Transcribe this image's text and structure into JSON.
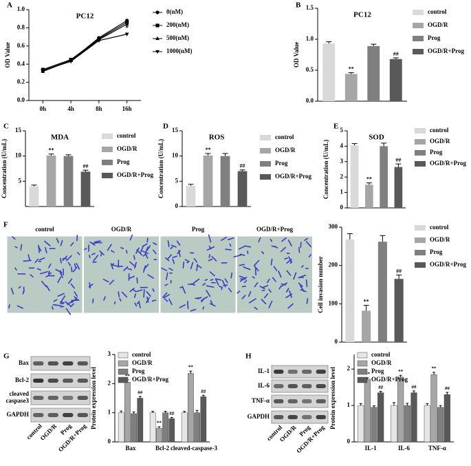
{
  "panels": [
    "A",
    "B",
    "C",
    "D",
    "E",
    "F",
    "G",
    "H"
  ],
  "micrographs": {
    "labels": [
      "control",
      "OGD/R",
      "Prog",
      "OGD/R+Prog"
    ]
  },
  "blots": [
    {
      "rows": [
        "Bax",
        "Bcl-2",
        [
          "cleaved",
          "caspase3"
        ],
        "GAPDH"
      ],
      "lanes": [
        "control",
        "OGD/R",
        "Prog",
        "OGD/R+Prog"
      ]
    },
    {
      "rows": [
        "IL-1",
        "IL-6",
        "TNF-α",
        "GAPDH"
      ],
      "lanes": [
        "control",
        "OGD/R",
        "Prog",
        "OGD/R+Prog"
      ]
    }
  ],
  "chart_data": [
    {
      "type": "line",
      "title": "PC12",
      "ylabel": "OD Value",
      "categories": [
        "0h",
        "4h",
        "8h",
        "16h"
      ],
      "color": "#000000",
      "series": [
        {
          "name": "0(nM)",
          "marker": "circle",
          "values": [
            0.33,
            0.44,
            0.69,
            0.88
          ]
        },
        {
          "name": "200(nM)",
          "marker": "square",
          "values": [
            0.34,
            0.45,
            0.68,
            0.86
          ]
        },
        {
          "name": "500(nM)",
          "marker": "triangle-up",
          "values": [
            0.32,
            0.44,
            0.67,
            0.84
          ]
        },
        {
          "name": "1000(nM)",
          "marker": "triangle-down",
          "values": [
            0.33,
            0.43,
            0.66,
            0.73
          ],
          "annotations": [
            null,
            null,
            null,
            "*"
          ]
        }
      ],
      "ylim": [
        0,
        1
      ],
      "yticks": [
        {
          "value": 0,
          "label": "0.0"
        },
        {
          "value": 0.2,
          "label": "0.2"
        },
        {
          "value": 0.4,
          "label": "0.4"
        },
        {
          "value": 0.6,
          "label": "0.6"
        },
        {
          "value": 0.8,
          "label": "0.8"
        },
        {
          "value": 1,
          "label": "1.0"
        }
      ]
    },
    {
      "type": "bar",
      "title": "PC12",
      "ylabel": "OD Value",
      "categories": [
        "control",
        "OGD/R",
        "Prog",
        "OGD/R+Prog"
      ],
      "values": [
        0.93,
        0.44,
        0.89,
        0.68
      ],
      "errors": [
        0.03,
        0.02,
        0.03,
        0.02
      ],
      "annotations": [
        null,
        "**",
        null,
        "##"
      ],
      "colors": [
        "#d9d9d9",
        "#a6a6a6",
        "#7f7f7f",
        "#595959"
      ],
      "ylim": [
        0,
        1.5
      ],
      "yticks": [
        {
          "value": 0,
          "label": "0.0"
        },
        {
          "value": 0.5,
          "label": "0.5"
        },
        {
          "value": 1,
          "label": "1.0"
        },
        {
          "value": 1.5,
          "label": "1.5"
        }
      ]
    },
    {
      "type": "bar",
      "title": "MDA",
      "ylabel": "Concentration (U/mL)",
      "categories": [
        "control",
        "OGD/R",
        "Prog",
        "OGD/R+Prog"
      ],
      "values": [
        4.0,
        10.1,
        10.0,
        6.9
      ],
      "errors": [
        0.25,
        0.3,
        0.25,
        0.3
      ],
      "annotations": [
        null,
        "**",
        null,
        "##"
      ],
      "colors": [
        "#d9d9d9",
        "#a6a6a6",
        "#7f7f7f",
        "#595959"
      ],
      "ylim": [
        0,
        15
      ],
      "yticks": [
        5,
        10,
        15
      ]
    },
    {
      "type": "bar",
      "title": "ROS",
      "ylabel": "Concentration (U/mL)",
      "categories": [
        "control",
        "OGD/R",
        "Prog",
        "OGD/R+Prog"
      ],
      "values": [
        4.1,
        10.1,
        10.0,
        7.0
      ],
      "errors": [
        0.3,
        0.4,
        0.5,
        0.25
      ],
      "annotations": [
        null,
        "**",
        null,
        "##"
      ],
      "colors": [
        "#d9d9d9",
        "#a6a6a6",
        "#7f7f7f",
        "#595959"
      ],
      "ylim": [
        0,
        15
      ],
      "yticks": [
        0,
        5,
        10,
        15
      ]
    },
    {
      "type": "bar",
      "title": "SOD",
      "ylabel": "Concentration (U/mL)",
      "categories": [
        "control",
        "OGD/R",
        "Prog",
        "OGD/R+Prog"
      ],
      "values": [
        4.05,
        1.5,
        4.0,
        2.65
      ],
      "errors": [
        0.12,
        0.12,
        0.2,
        0.2
      ],
      "annotations": [
        null,
        "**",
        null,
        "##"
      ],
      "colors": [
        "#d9d9d9",
        "#a6a6a6",
        "#7f7f7f",
        "#595959"
      ],
      "ylim": [
        0,
        5
      ],
      "yticks": [
        0,
        1,
        2,
        3,
        4,
        5
      ]
    },
    {
      "type": "bar",
      "ylabel": "Cell invasion number",
      "categories": [
        "control",
        "OGD/R",
        "Prog",
        "OGD/R+Prog"
      ],
      "values": [
        268,
        82,
        262,
        165
      ],
      "errors": [
        15,
        14,
        16,
        10
      ],
      "annotations": [
        null,
        "**",
        null,
        "##"
      ],
      "colors": [
        "#d9d9d9",
        "#a6a6a6",
        "#7f7f7f",
        "#595959"
      ],
      "ylim": [
        0,
        300
      ],
      "yticks": [
        0,
        100,
        200,
        300
      ]
    },
    {
      "type": "bar",
      "ylabel": "Protein expression level",
      "categories": [
        "Bax",
        "Bcl-2",
        "cleaved-caspase-3"
      ],
      "series": [
        {
          "name": "control",
          "color": "#e6e6e6",
          "values": [
            1,
            1,
            1
          ],
          "errors": [
            0.06,
            0.05,
            0.05
          ]
        },
        {
          "name": "OGD/R",
          "color": "#a6a6a6",
          "values": [
            2.05,
            0.47,
            2.35
          ],
          "errors": [
            0.08,
            0.05,
            0.08
          ],
          "annotations": [
            "**",
            "**",
            "**"
          ]
        },
        {
          "name": "Prog",
          "color": "#7f7f7f",
          "values": [
            0.97,
            1.0,
            1.0
          ],
          "errors": [
            0.06,
            0.05,
            0.08
          ]
        },
        {
          "name": "OGD/R+Prog",
          "color": "#595959",
          "values": [
            1.5,
            0.8,
            1.55
          ],
          "errors": [
            0.06,
            0.04,
            0.05
          ],
          "annotations": [
            "##",
            "##",
            "##"
          ]
        }
      ],
      "ylim": [
        0,
        3
      ],
      "yticks": [
        0,
        1,
        2,
        3
      ]
    },
    {
      "type": "bar",
      "ylabel": "Protein expression level",
      "categories": [
        "IL-1",
        "IL-6",
        "TNF-α"
      ],
      "series": [
        {
          "name": "control",
          "color": "#e6e6e6",
          "values": [
            1,
            1,
            1
          ],
          "errors": [
            0.05,
            0.08,
            0.05
          ]
        },
        {
          "name": "OGD/R",
          "color": "#a6a6a6",
          "values": [
            1.72,
            1.78,
            1.85
          ],
          "errors": [
            0.04,
            0.05,
            0.06
          ],
          "annotations": [
            "**",
            "**",
            "**"
          ]
        },
        {
          "name": "Prog",
          "color": "#7f7f7f",
          "values": [
            0.95,
            1.0,
            0.95
          ],
          "errors": [
            0.04,
            0.06,
            0.05
          ]
        },
        {
          "name": "OGD/R+Prog",
          "color": "#595959",
          "values": [
            1.35,
            1.35,
            1.3
          ],
          "errors": [
            0.04,
            0.05,
            0.06
          ],
          "annotations": [
            "##",
            "##",
            "##"
          ]
        }
      ],
      "ylim": [
        0,
        2.4
      ],
      "yticks": [
        0,
        1,
        2
      ]
    }
  ]
}
